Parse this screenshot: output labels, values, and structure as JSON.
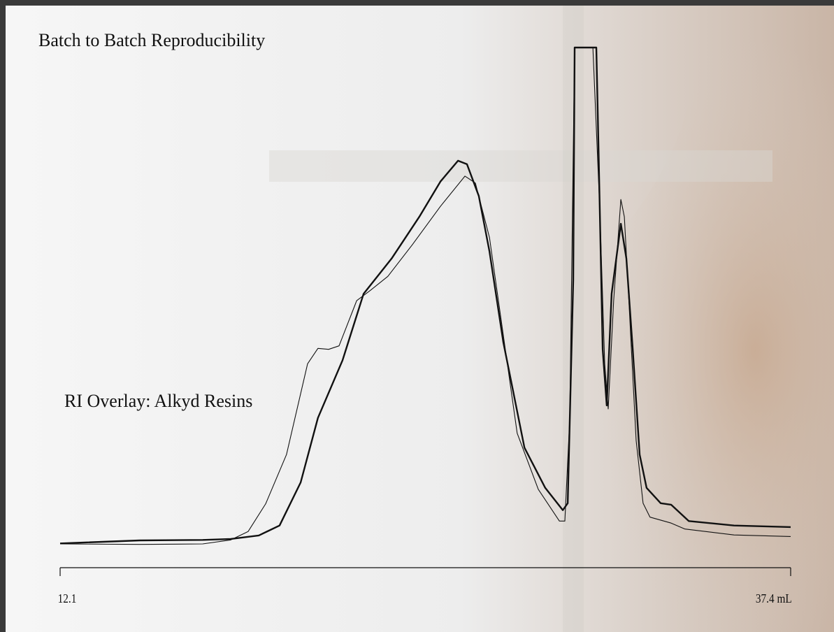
{
  "chart_data": {
    "type": "line",
    "title": "Batch to Batch Reproducibility",
    "annotation": "RI Overlay:  Alkyd Resins",
    "xlim": [
      12.1,
      37.4
    ],
    "xticks": [
      12.1,
      {
        "value": 37.4,
        "label": "37.4 mL"
      }
    ],
    "ylim": [
      0,
      100
    ],
    "series": [
      {
        "color": "#111111",
        "width": 2.4,
        "x": [
          12.1,
          14.86,
          17.04,
          18.01,
          18.98,
          19.7,
          20.43,
          21.03,
          21.88,
          22.61,
          23.58,
          24.54,
          25.27,
          25.88,
          26.19,
          26.6,
          26.97,
          27.45,
          28.18,
          28.9,
          29.51,
          29.68,
          29.87,
          29.92,
          30.67,
          30.74,
          30.89,
          31.03,
          31.2,
          31.52,
          31.71,
          31.93,
          32.17,
          32.41,
          32.9,
          33.26,
          33.87,
          35.44,
          37.4
        ],
        "values": [
          0.1,
          0.7,
          0.8,
          1.0,
          1.7,
          3.7,
          12.4,
          25.4,
          37.0,
          50.4,
          57.5,
          65.9,
          73.0,
          77.2,
          76.5,
          70.1,
          58.9,
          40.6,
          19.4,
          11.3,
          6.8,
          8.2,
          53.2,
          100,
          100,
          81.4,
          39.2,
          27.9,
          50.4,
          64.5,
          57.5,
          39.2,
          18.0,
          11.3,
          8.2,
          7.9,
          4.6,
          3.7,
          3.4
        ]
      },
      {
        "color": "#111111",
        "width": 1.1,
        "x": [
          12.1,
          14.86,
          17.04,
          18.01,
          18.61,
          19.22,
          19.94,
          20.67,
          21.03,
          21.4,
          21.76,
          22.37,
          22.85,
          23.45,
          24.3,
          25.27,
          26.12,
          26.48,
          26.97,
          27.45,
          27.93,
          28.66,
          29.39,
          29.58,
          29.75,
          29.92,
          30.55,
          30.79,
          30.96,
          31.08,
          31.27,
          31.52,
          31.64,
          31.81,
          32.05,
          32.29,
          32.53,
          33.26,
          33.74,
          35.44,
          37.4
        ],
        "values": [
          0,
          -0.1,
          0,
          0.8,
          2.5,
          8.1,
          18.0,
          36.3,
          39.4,
          39.2,
          39.9,
          49.0,
          51.1,
          53.9,
          60.3,
          68.0,
          74.1,
          72.7,
          61.7,
          42.0,
          22.3,
          11.0,
          4.6,
          4.6,
          25.1,
          100,
          100,
          67.3,
          36.3,
          27.2,
          49.0,
          69.4,
          65.9,
          47.6,
          20.8,
          8.2,
          5.4,
          4.2,
          3.0,
          1.8,
          1.5
        ]
      }
    ]
  }
}
